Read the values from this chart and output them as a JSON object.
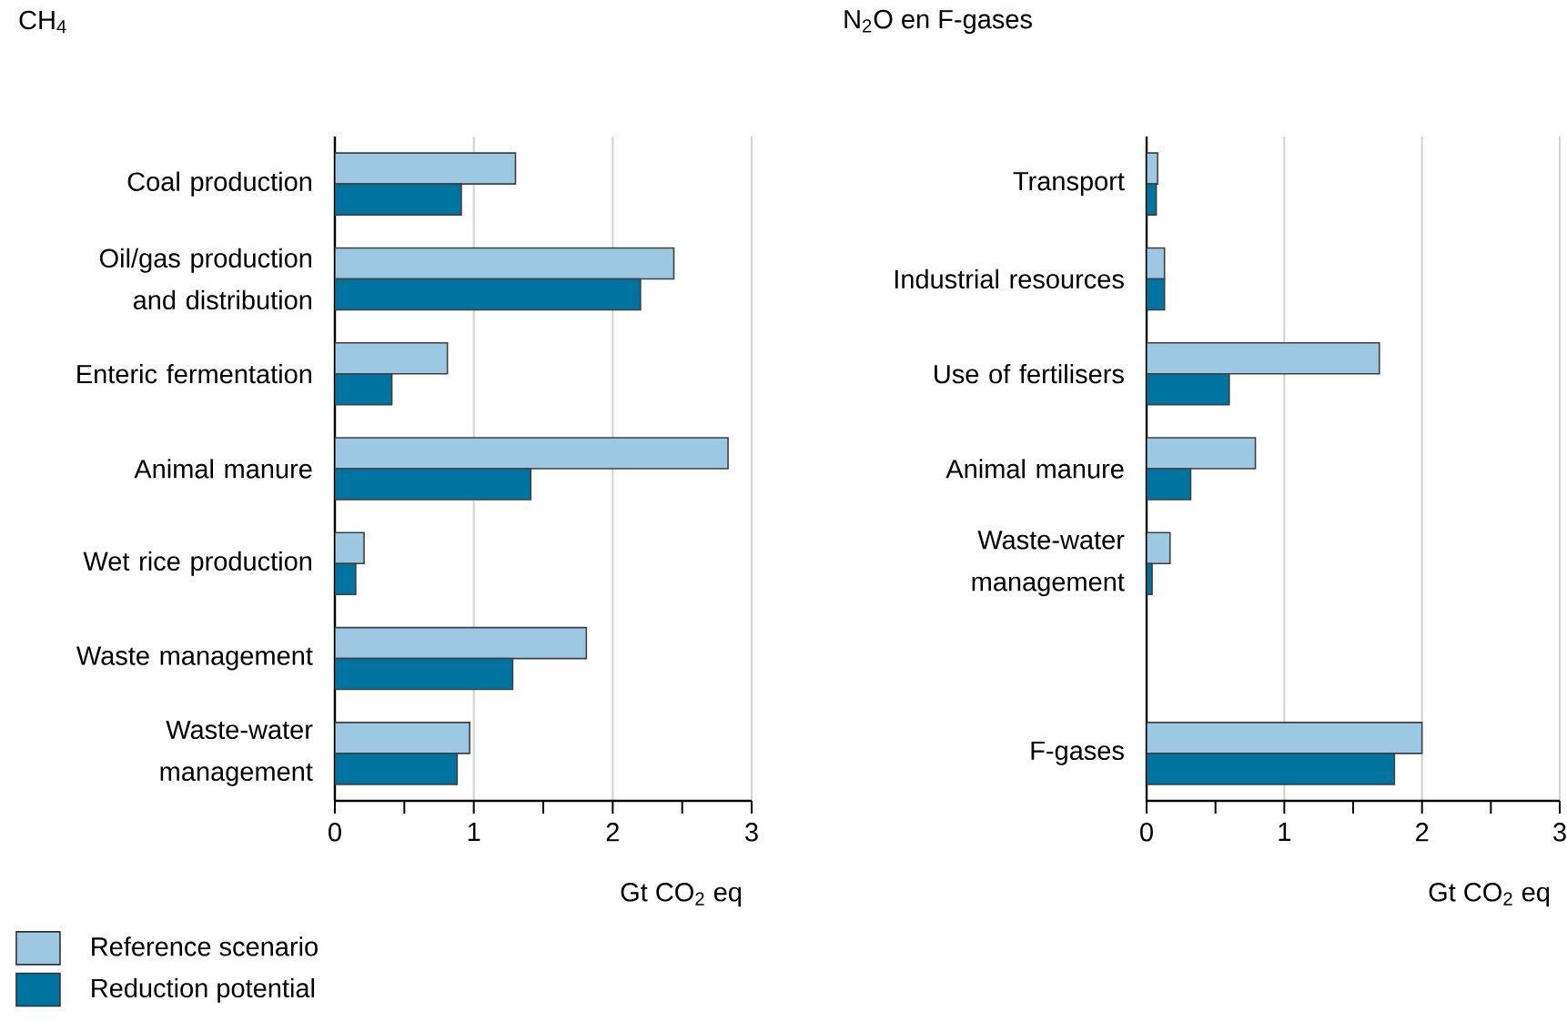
{
  "chart_data": [
    {
      "type": "bar",
      "orientation": "horizontal",
      "title": "CH$_{4}$",
      "xlabel": "Gt CO$_{2}$ eq",
      "categories": [
        "Coal production",
        "Oil/gas production and distribution",
        "Enteric fermentation",
        "Animal manure",
        "Wet rice production",
        "Waste management",
        "Waste-water management"
      ],
      "series": [
        {
          "name": "Reference scenario",
          "color": "#9dc8e4",
          "values": [
            1.3,
            2.44,
            0.81,
            2.83,
            0.21,
            1.81,
            0.97
          ]
        },
        {
          "name": "Reduction potential",
          "color": "#0074a0",
          "values": [
            0.91,
            2.2,
            0.41,
            1.41,
            0.15,
            1.28,
            0.88
          ]
        }
      ],
      "xlim": [
        0,
        3
      ],
      "xticks": [
        0,
        {
          "value": 0.5,
          "label": null
        },
        1,
        {
          "value": 1.5,
          "label": null
        },
        2,
        {
          "value": 2.5,
          "label": null
        },
        3
      ],
      "grid": "x",
      "legend": "bottom left"
    },
    {
      "type": "bar",
      "orientation": "horizontal",
      "title": "N$_{2}$O en F-gases",
      "xlabel": "Gt CO$_{2}$ eq",
      "categories": [
        "Transport",
        "Industrial resources",
        "Use of fertilisers",
        "Animal manure",
        "Waste-water management",
        null,
        "F-gases"
      ],
      "series": [
        {
          "color": "#9dc8e4",
          "values": [
            0.08,
            0.13,
            1.69,
            0.79,
            0.17,
            null,
            2.0
          ]
        },
        {
          "color": "#0074a0",
          "values": [
            0.07,
            0.13,
            0.6,
            0.32,
            0.04,
            null,
            1.8
          ]
        }
      ],
      "xlim": [
        0,
        3
      ],
      "xticks": [
        0,
        {
          "value": 0.5,
          "label": null
        },
        1,
        {
          "value": 1.5,
          "label": null
        },
        2,
        {
          "value": 2.5,
          "label": null
        },
        3
      ],
      "grid": "x"
    }
  ]
}
